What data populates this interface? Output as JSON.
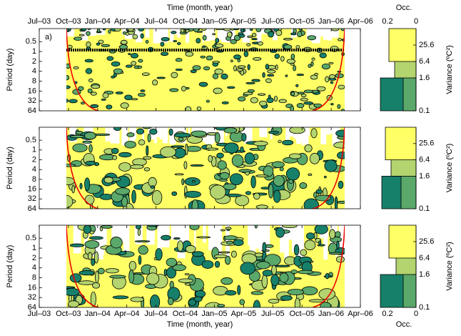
{
  "chart_data": {
    "type": "wavelet",
    "x_label": "Time (month, year)",
    "xticks": [
      "Jul–03",
      "Oct–03",
      "Jan–04",
      "Apr–04",
      "Jul–04",
      "Oct–04",
      "Jan–05",
      "Apr–05",
      "Jul–05",
      "Oct–05",
      "Jan–06",
      "Apr–06"
    ],
    "y_label": "Period (day)",
    "ylim": [
      0.2,
      64
    ],
    "yticks": [
      0.5,
      1,
      2,
      4,
      8,
      16,
      32,
      64
    ],
    "log_y": true,
    "occ_label": "Occ.",
    "occ_lim": [
      0.25,
      0
    ],
    "occ_ticks": [
      0.2,
      0
    ],
    "colorbar_label": "Variance (ºC²)",
    "colorbar_lim": [
      0.1,
      102.4
    ],
    "colorbar_ticks": [
      25.6,
      6.4,
      1.6,
      0.1
    ],
    "band_colors": [
      "#17806a",
      "#5aa86a",
      "#b3d46e",
      "#ffff66"
    ],
    "panels": [
      {
        "label": "a)",
        "occurrence": [
          0.25,
          0.09,
          0.15,
          0.19
        ]
      },
      {
        "occurrence": [
          0.24,
          0.105,
          0.175,
          0.215
        ]
      },
      {
        "occurrence": [
          0.25,
          0.09,
          0.14,
          0.19
        ]
      }
    ]
  }
}
